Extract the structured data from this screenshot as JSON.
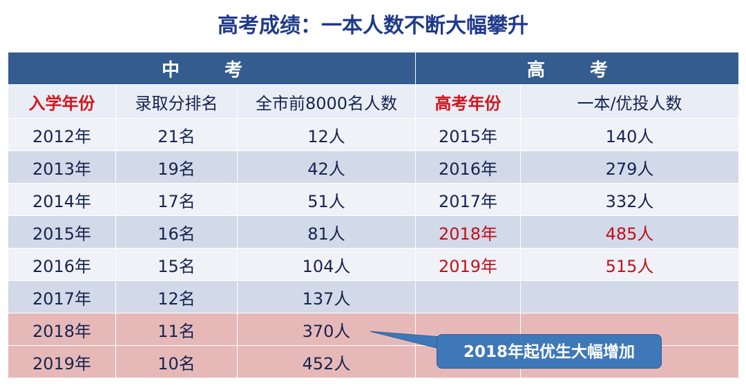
{
  "title": "高考成绩：一本人数不断大幅攀升",
  "groups": {
    "zhongkao": "中 考",
    "gaokao": "高 考"
  },
  "columns": [
    "入学年份",
    "录取分排名",
    "全市前8000名人数",
    "高考年份",
    "一本/优投人数"
  ],
  "rows": [
    [
      "2012年",
      "21名",
      "12人",
      "2015年",
      "140人"
    ],
    [
      "2013年",
      "19名",
      "42人",
      "2016年",
      "279人"
    ],
    [
      "2014年",
      "17名",
      "51人",
      "2017年",
      "332人"
    ],
    [
      "2015年",
      "16名",
      "81人",
      "2018年",
      "485人"
    ],
    [
      "2016年",
      "15名",
      "104人",
      "2019年",
      "515人"
    ],
    [
      "2017年",
      "12名",
      "137人",
      "",
      ""
    ],
    [
      "2018年",
      "11名",
      "370人",
      "",
      ""
    ],
    [
      "2019年",
      "10名",
      "452人",
      "",
      ""
    ]
  ],
  "callout": "2018年起优生大幅增加",
  "colors": {
    "header": "#345c8f",
    "highlight_red": "#c0101a",
    "pink_row": "#e6b9b8",
    "callout": "#3f78b9"
  }
}
